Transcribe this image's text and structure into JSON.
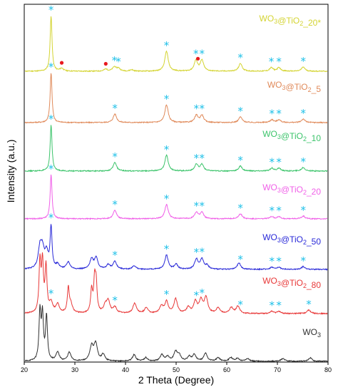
{
  "chart_data": {
    "type": "line",
    "xlabel": "2 Theta (Degree)",
    "ylabel": "Intensity (a.u.)",
    "xlim": [
      20,
      80
    ],
    "xticks": [
      20,
      30,
      40,
      50,
      60,
      70,
      80
    ],
    "grid": false,
    "series": [
      {
        "name": "WO3@TiO2_20*",
        "label_main": "WO",
        "label_sub1": "3",
        "label_mid": "@TiO",
        "label_sub2": "2",
        "label_tail": "_20*",
        "color": "#d4d432",
        "baseline": 100,
        "peaks": [
          [
            25.3,
            78
          ],
          [
            27.4,
            4
          ],
          [
            36.1,
            3
          ],
          [
            37.8,
            6
          ],
          [
            38.6,
            4
          ],
          [
            41.2,
            2
          ],
          [
            48.1,
            28
          ],
          [
            53.9,
            15
          ],
          [
            55.1,
            15
          ],
          [
            62.7,
            11
          ],
          [
            68.8,
            5
          ],
          [
            70.3,
            5
          ],
          [
            75.1,
            6
          ]
        ],
        "stars": [
          25.3,
          37.8,
          38.6,
          48.1,
          53.9,
          55.1,
          62.7,
          68.8,
          70.3,
          75.1
        ],
        "dots": [
          27.4,
          36.1,
          54.3
        ]
      },
      {
        "name": "WO3@TiO2_5",
        "label_main": "WO",
        "label_sub1": "3",
        "label_mid": "@TiO",
        "label_sub2": "2",
        "label_tail": "_5",
        "color": "#e08a5a",
        "baseline": 172,
        "peaks": [
          [
            25.3,
            70
          ],
          [
            37.9,
            12
          ],
          [
            48.1,
            25
          ],
          [
            54.0,
            10
          ],
          [
            55.1,
            10
          ],
          [
            62.7,
            8
          ],
          [
            68.9,
            4
          ],
          [
            70.3,
            4
          ],
          [
            75.1,
            5
          ]
        ],
        "stars": [
          25.3,
          37.9,
          48.1,
          54.0,
          55.1,
          62.7,
          68.9,
          70.3,
          75.1
        ],
        "dots": []
      },
      {
        "name": "WO3@TiO2_10",
        "label_main": "WO",
        "label_sub1": "3",
        "label_mid": "@TiO",
        "label_sub2": "2",
        "label_tail": "_10",
        "color": "#3cc46b",
        "baseline": 240,
        "peaks": [
          [
            25.3,
            65
          ],
          [
            37.9,
            12
          ],
          [
            48.1,
            22
          ],
          [
            54.0,
            9
          ],
          [
            55.1,
            9
          ],
          [
            62.7,
            7
          ],
          [
            68.9,
            4
          ],
          [
            70.3,
            4
          ],
          [
            75.1,
            5
          ]
        ],
        "stars": [
          25.3,
          37.9,
          48.1,
          54.0,
          55.1,
          62.7,
          68.9,
          70.3,
          75.1
        ],
        "dots": []
      },
      {
        "name": "WO3@TiO2_20",
        "label_main": "WO",
        "label_sub1": "3",
        "label_mid": "@TiO",
        "label_sub2": "2",
        "label_tail": "_20",
        "color": "#f060e8",
        "baseline": 307,
        "peaks": [
          [
            25.3,
            62
          ],
          [
            37.9,
            12
          ],
          [
            48.1,
            20
          ],
          [
            54.0,
            9
          ],
          [
            55.1,
            9
          ],
          [
            62.7,
            7
          ],
          [
            68.9,
            3
          ],
          [
            70.3,
            3
          ],
          [
            75.1,
            4
          ]
        ],
        "stars": [
          25.3,
          37.9,
          48.1,
          54.0,
          55.1,
          62.7,
          68.9,
          70.3,
          75.1
        ],
        "dots": []
      },
      {
        "name": "WO3@TiO2_50",
        "label_main": "WO",
        "label_sub1": "3",
        "label_mid": "@TiO",
        "label_sub2": "2",
        "label_tail": "_50",
        "color": "#2828d8",
        "baseline": 378,
        "peaks": [
          [
            23.1,
            28
          ],
          [
            23.6,
            24
          ],
          [
            24.4,
            22
          ],
          [
            25.3,
            58
          ],
          [
            26.6,
            6
          ],
          [
            28.7,
            10
          ],
          [
            33.3,
            14
          ],
          [
            34.2,
            16
          ],
          [
            36.6,
            6
          ],
          [
            37.9,
            11
          ],
          [
            41.7,
            5
          ],
          [
            48.1,
            20
          ],
          [
            50.0,
            7
          ],
          [
            54.0,
            14
          ],
          [
            55.1,
            14
          ],
          [
            56.1,
            5
          ],
          [
            62.4,
            9
          ],
          [
            68.9,
            3
          ],
          [
            70.3,
            3
          ],
          [
            75.1,
            4
          ]
        ],
        "stars": [
          25.3,
          37.9,
          48.1,
          54.0,
          55.1,
          62.7,
          68.9,
          70.3,
          75.1
        ],
        "dots": []
      },
      {
        "name": "WO3@TiO2_80",
        "label_main": "WO",
        "label_sub1": "3",
        "label_mid": "@TiO",
        "label_sub2": "2",
        "label_tail": "_80",
        "color": "#e83838",
        "baseline": 440,
        "peaks": [
          [
            23.1,
            70
          ],
          [
            23.6,
            68
          ],
          [
            24.3,
            64
          ],
          [
            25.3,
            14
          ],
          [
            26.6,
            12
          ],
          [
            28.7,
            34
          ],
          [
            29.2,
            12
          ],
          [
            33.3,
            32
          ],
          [
            33.9,
            44
          ],
          [
            34.2,
            38
          ],
          [
            36.0,
            10
          ],
          [
            36.6,
            16
          ],
          [
            37.9,
            8
          ],
          [
            41.8,
            14
          ],
          [
            44.1,
            8
          ],
          [
            47.1,
            10
          ],
          [
            48.1,
            16
          ],
          [
            49.9,
            20
          ],
          [
            52.4,
            8
          ],
          [
            53.8,
            16
          ],
          [
            54.9,
            18
          ],
          [
            55.9,
            22
          ],
          [
            58.3,
            8
          ],
          [
            60.9,
            8
          ],
          [
            62.2,
            10
          ],
          [
            68.9,
            3
          ],
          [
            70.3,
            3
          ],
          [
            76.2,
            5
          ]
        ],
        "stars": [
          25.3,
          37.9,
          48.1,
          54.0,
          55.1,
          62.7,
          68.9,
          70.3,
          76.2
        ],
        "dots": []
      },
      {
        "name": "WO3",
        "label_main": "WO",
        "label_sub1": "3",
        "label_mid": "",
        "label_sub2": "",
        "label_tail": "",
        "color": "#303030",
        "baseline": 507,
        "peaks": [
          [
            23.1,
            68
          ],
          [
            23.6,
            62
          ],
          [
            24.4,
            62
          ],
          [
            26.6,
            12
          ],
          [
            28.9,
            12
          ],
          [
            33.3,
            20
          ],
          [
            34.1,
            24
          ],
          [
            35.6,
            9
          ],
          [
            41.7,
            9
          ],
          [
            44.0,
            5
          ],
          [
            47.2,
            9
          ],
          [
            48.3,
            6
          ],
          [
            49.9,
            13
          ],
          [
            50.6,
            8
          ],
          [
            52.6,
            6
          ],
          [
            53.6,
            9
          ],
          [
            55.8,
            11
          ],
          [
            58.3,
            5
          ],
          [
            60.8,
            5
          ],
          [
            62.1,
            4
          ],
          [
            64.1,
            4
          ],
          [
            71.1,
            4
          ],
          [
            76.5,
            5
          ]
        ],
        "stars": [],
        "dots": []
      }
    ]
  }
}
